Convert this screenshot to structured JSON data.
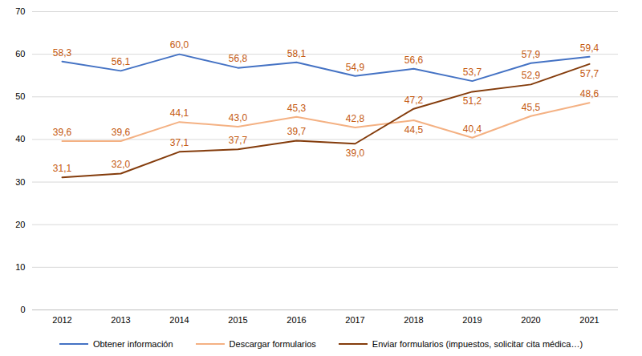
{
  "chart_data": {
    "type": "line",
    "categories": [
      "2012",
      "2013",
      "2014",
      "2015",
      "2016",
      "2017",
      "2018",
      "2019",
      "2020",
      "2021"
    ],
    "series": [
      {
        "name": "Obtener información",
        "color": "#4472c4",
        "values": [
          58.3,
          56.1,
          60.0,
          56.8,
          58.1,
          54.9,
          56.6,
          53.7,
          57.9,
          59.4
        ],
        "value_labels": [
          "58,3",
          "56,1",
          "60,0",
          "56,8",
          "58,1",
          "54,9",
          "56,6",
          "53,7",
          "57,9",
          "59,4"
        ]
      },
      {
        "name": "Descargar formularios",
        "color": "#f4b183",
        "values": [
          39.6,
          39.6,
          44.1,
          43.0,
          45.3,
          42.8,
          44.5,
          40.4,
          45.5,
          48.6
        ],
        "value_labels": [
          "39,6",
          "39,6",
          "44,1",
          "43,0",
          "45,3",
          "42,8",
          "44,5",
          "40,4",
          "45,5",
          "48,6"
        ]
      },
      {
        "name": "Enviar formularios (impuestos, solicitar cita médica…)",
        "color": "#843c0c",
        "values": [
          31.1,
          32.0,
          37.1,
          37.7,
          39.7,
          39.0,
          47.2,
          51.2,
          52.9,
          57.7
        ],
        "value_labels": [
          "31,1",
          "32,0",
          "37,1",
          "37,7",
          "39,7",
          "39,0",
          "47,2",
          "51,2",
          "52,9",
          "57,7"
        ]
      }
    ],
    "ylim": [
      0,
      70
    ],
    "yticks": [
      0,
      10,
      20,
      30,
      40,
      50,
      60,
      70
    ],
    "grid": true,
    "data_labels": true,
    "legend": "bottom"
  }
}
